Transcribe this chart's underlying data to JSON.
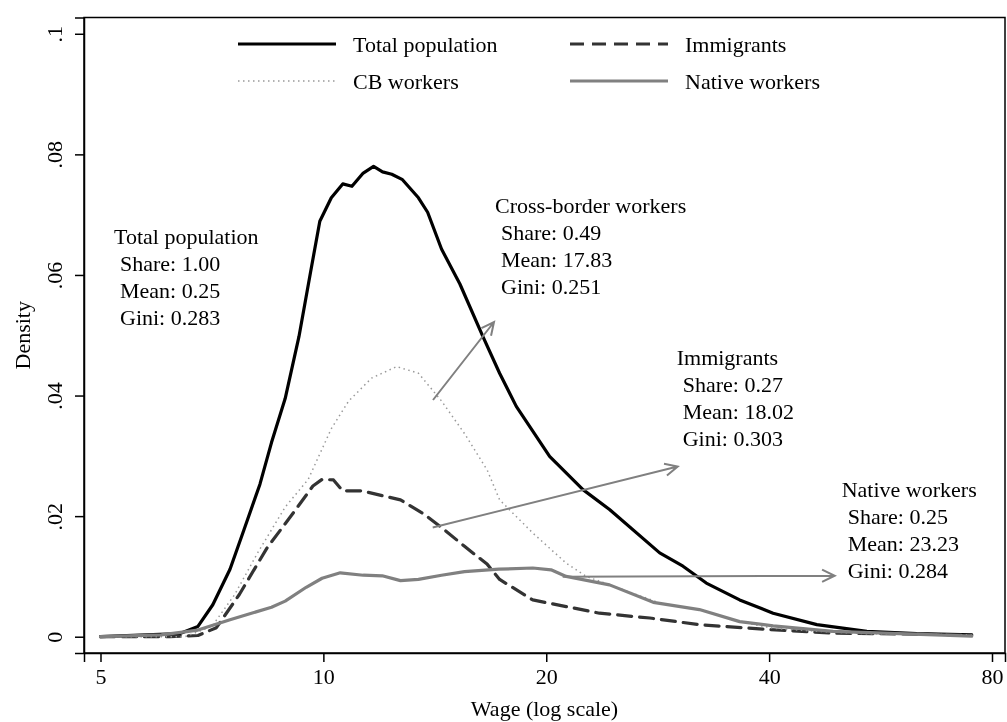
{
  "chart_data": {
    "type": "line",
    "xlabel": "Wage (log scale)",
    "ylabel": "Density",
    "log": "x",
    "grid": false,
    "legend": "top",
    "marker": "none",
    "xlim": [
      4.75,
      83.3
    ],
    "xticks": [
      5,
      10,
      20,
      40,
      80
    ],
    "ylim": [
      -0.0027,
      0.1027
    ],
    "yticks": [
      {
        "value": 0,
        "label": "0"
      },
      {
        "value": 0.02,
        "label": ".02"
      },
      {
        "value": 0.04,
        "label": ".04"
      },
      {
        "value": 0.06,
        "label": ".06"
      },
      {
        "value": 0.08,
        "label": ".08"
      },
      {
        "value": 0.1,
        "label": ".1"
      }
    ],
    "series": [
      {
        "name": "Total population",
        "color": "#000000",
        "line_style": "solid",
        "x": [
          5,
          6.39,
          6.77,
          7.09,
          7.48,
          7.81,
          8.21,
          8.51,
          8.88,
          9.27,
          9.61,
          9.89,
          10.25,
          10.62,
          10.93,
          11.32,
          11.69,
          12.02,
          12.37,
          12.79,
          13.44,
          13.83,
          14.44,
          15.29,
          16.42,
          17.3,
          18.22,
          20.21,
          22.42,
          24.35,
          28.46,
          30.6,
          32.9,
          36.5,
          40.5,
          46.4,
          54.2,
          63.3,
          75.1
        ],
        "values": [
          0,
          0.0005,
          0.0017,
          0.0053,
          0.0112,
          0.0177,
          0.0253,
          0.0322,
          0.0395,
          0.0498,
          0.0605,
          0.0689,
          0.0728,
          0.0751,
          0.0747,
          0.0769,
          0.078,
          0.0771,
          0.0767,
          0.0758,
          0.0728,
          0.0704,
          0.0643,
          0.0585,
          0.0498,
          0.0437,
          0.0382,
          0.0299,
          0.0244,
          0.0211,
          0.0139,
          0.0117,
          0.0089,
          0.0061,
          0.0039,
          0.002,
          0.0009,
          0.0005,
          0.0003
        ]
      },
      {
        "name": "Immigrants",
        "color": "#333333",
        "line_style": "dashed",
        "x": [
          5,
          6.21,
          6.77,
          7.17,
          7.7,
          8.39,
          9.14,
          9.68,
          9.96,
          10.32,
          10.62,
          11.26,
          12.01,
          12.71,
          13.65,
          14.44,
          15.51,
          16.65,
          17.3,
          19.18,
          21.28,
          23.6,
          27.6,
          32.2,
          39.7,
          48.8,
          75.1
        ],
        "values": [
          0,
          0,
          0.0002,
          0.0015,
          0.007,
          0.0147,
          0.0208,
          0.025,
          0.0261,
          0.026,
          0.0242,
          0.0242,
          0.0234,
          0.0227,
          0.0204,
          0.0181,
          0.015,
          0.012,
          0.0095,
          0.0061,
          0.005,
          0.0039,
          0.0031,
          0.002,
          0.0012,
          0.0006,
          0.0003
        ]
      },
      {
        "name": "CB workers",
        "color": "#999999",
        "line_style": "dotted",
        "x": [
          5,
          6.5,
          7.07,
          7.59,
          8.15,
          8.88,
          9.54,
          10.25,
          10.82,
          11.62,
          12.56,
          13.44,
          14.44,
          15.51,
          16.65,
          17.3,
          19.18,
          21.28,
          22.65,
          28.46,
          32.9,
          36.5,
          40.5,
          46.4,
          54.2,
          75.1
        ],
        "values": [
          0,
          0,
          0.0017,
          0.007,
          0.0139,
          0.0215,
          0.0261,
          0.0345,
          0.0391,
          0.0429,
          0.0448,
          0.0437,
          0.0391,
          0.0337,
          0.0276,
          0.0227,
          0.0172,
          0.0122,
          0.01,
          0.0056,
          0.0042,
          0.0025,
          0.0014,
          0.0009,
          0.0005,
          0.0003
        ]
      },
      {
        "name": "Native workers",
        "color": "#808080",
        "line_style": "solid",
        "x": [
          5,
          6.04,
          6.77,
          7.48,
          8.51,
          8.88,
          9.48,
          9.96,
          10.54,
          11.32,
          12.01,
          12.71,
          13.44,
          14.44,
          15.51,
          17.26,
          19.18,
          20.3,
          21.28,
          24.35,
          27.9,
          32.2,
          36.5,
          40.5,
          48.8,
          75.1
        ],
        "values": [
          0,
          0.0003,
          0.0011,
          0.0028,
          0.0049,
          0.0059,
          0.0082,
          0.0097,
          0.0106,
          0.0102,
          0.0101,
          0.0093,
          0.0095,
          0.0102,
          0.0108,
          0.0112,
          0.0114,
          0.0111,
          0.01,
          0.0086,
          0.0057,
          0.0045,
          0.0025,
          0.0018,
          0.0009,
          0.0001
        ]
      }
    ],
    "annotations": [
      "Total population\nShare: 1.00\nMean: 0.25\nGini: 0.283",
      "Cross-border workers\nShare: 0.49\nMean: 17.83\nGini: 0.251",
      {
        "text": "Immigrants\nShare: 0.27\nMean: 18.02\nGini: 0.303",
        "x": 14.05,
        "y": 0.0181
      },
      {
        "text": "Native workers\nShare: 0.25\nMean: 23.23\nGini: 0.284",
        "x": 21.05,
        "y": 0.00995
      }
    ]
  }
}
